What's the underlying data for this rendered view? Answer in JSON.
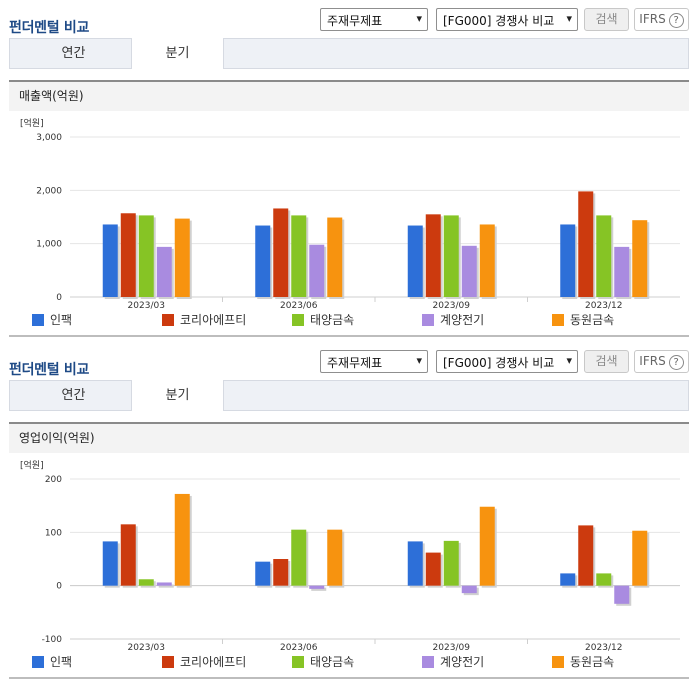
{
  "panels": [
    {
      "title": "펀더멘털 비교",
      "select1": "주재무제표",
      "select2": "[FG000] 경쟁사 비교",
      "search_btn": "검색",
      "ifrs_btn": "IFRS",
      "help": "?",
      "tabs": [
        "연간",
        "분기"
      ],
      "active_tab": "분기",
      "section": "매출액(억원)"
    },
    {
      "title": "펀더멘털 비교",
      "select1": "주재무제표",
      "select2": "[FG000] 경쟁사 비교",
      "search_btn": "검색",
      "ifrs_btn": "IFRS",
      "help": "?",
      "tabs": [
        "연간",
        "분기"
      ],
      "active_tab": "분기",
      "section": "영업이익(억원)"
    }
  ],
  "chart_data": [
    {
      "type": "bar",
      "title": "매출액(억원)",
      "unit": "[억원]",
      "categories": [
        "2023/03",
        "2023/06",
        "2023/09",
        "2023/12"
      ],
      "ylim": [
        0,
        3000
      ],
      "yticks": [
        0,
        1000,
        2000,
        3000
      ],
      "ytick_labels": [
        "0",
        "1,000",
        "2,000",
        "3,000"
      ],
      "grid": true,
      "legend_position": "bottom",
      "series": [
        {
          "name": "인팩",
          "color": "#2d6fd8",
          "values": [
            1360,
            1340,
            1340,
            1360
          ]
        },
        {
          "name": "코리아에프티",
          "color": "#cc3a0e",
          "values": [
            1570,
            1660,
            1550,
            1980
          ]
        },
        {
          "name": "태양금속",
          "color": "#86c425",
          "values": [
            1530,
            1530,
            1530,
            1530
          ]
        },
        {
          "name": "계양전기",
          "color": "#a98be0",
          "values": [
            940,
            980,
            960,
            940
          ]
        },
        {
          "name": "동원금속",
          "color": "#f7930f",
          "values": [
            1470,
            1490,
            1360,
            1440
          ]
        }
      ]
    },
    {
      "type": "bar",
      "title": "영업이익(억원)",
      "unit": "[억원]",
      "categories": [
        "2023/03",
        "2023/06",
        "2023/09",
        "2023/12"
      ],
      "ylim": [
        -100,
        200
      ],
      "yticks": [
        -100,
        0,
        100,
        200
      ],
      "ytick_labels": [
        "-100",
        "0",
        "100",
        "200"
      ],
      "grid": true,
      "legend_position": "bottom",
      "series": [
        {
          "name": "인팩",
          "color": "#2d6fd8",
          "values": [
            83,
            45,
            83,
            23
          ]
        },
        {
          "name": "코리아에프티",
          "color": "#cc3a0e",
          "values": [
            115,
            50,
            62,
            113
          ]
        },
        {
          "name": "태양금속",
          "color": "#86c425",
          "values": [
            12,
            105,
            84,
            23
          ]
        },
        {
          "name": "계양전기",
          "color": "#a98be0",
          "values": [
            6,
            -6,
            -14,
            -34
          ]
        },
        {
          "name": "동원금속",
          "color": "#f7930f",
          "values": [
            172,
            105,
            148,
            103
          ]
        }
      ]
    }
  ]
}
